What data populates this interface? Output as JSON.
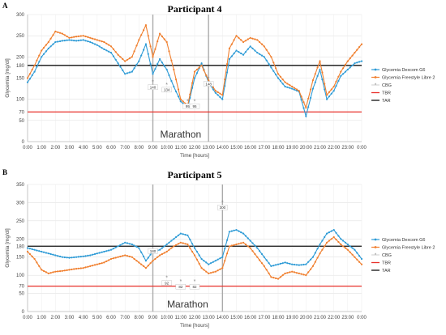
{
  "chart_data": [
    {
      "type": "line",
      "panel": "A",
      "title": "Participant 4",
      "xlabel": "Time [hours]",
      "ylabel": "Glycemia [mg/dl]",
      "ylim": [
        0,
        300
      ],
      "yticks": [
        0,
        50,
        70,
        100,
        150,
        180,
        200,
        250,
        300
      ],
      "xticks": [
        "0:00",
        "1:00",
        "2:00",
        "3:00",
        "4:00",
        "5:00",
        "6:00",
        "7:00",
        "8:00",
        "9:00",
        "10:00",
        "11:00",
        "12:00",
        "13:00",
        "14:00",
        "15:00",
        "16:00",
        "17:00",
        "18:00",
        "19:00",
        "20:00",
        "21:00",
        "22:00",
        "23:00",
        "0:00"
      ],
      "grid": true,
      "legend_position": "right",
      "event": {
        "label": "Marathon",
        "start": 9.0,
        "end": 13.0
      },
      "thresholds": [
        {
          "name": "TBR",
          "value": 70,
          "color": "#e8302a"
        },
        {
          "name": "TAR",
          "value": 180,
          "color": "#111111"
        }
      ],
      "series": [
        {
          "name": "Glycemia Dexcom G6",
          "color": "#2e9bd6",
          "x": [
            0,
            0.5,
            1,
            1.5,
            2,
            2.5,
            3,
            3.5,
            4,
            4.5,
            5,
            5.5,
            6,
            6.5,
            7,
            7.5,
            8,
            8.5,
            9,
            9.5,
            10,
            10.5,
            11,
            11.5,
            12,
            12.5,
            13,
            13.5,
            14,
            14.5,
            15,
            15.5,
            16,
            16.5,
            17,
            17.5,
            18,
            18.5,
            19,
            19.5,
            20,
            20.5,
            21,
            21.5,
            22,
            22.5,
            23,
            23.5,
            24
          ],
          "values": [
            140,
            165,
            200,
            220,
            235,
            238,
            240,
            238,
            240,
            235,
            228,
            218,
            210,
            185,
            160,
            165,
            190,
            230,
            160,
            195,
            170,
            130,
            95,
            80,
            150,
            185,
            140,
            115,
            100,
            195,
            215,
            205,
            225,
            210,
            200,
            175,
            150,
            130,
            125,
            118,
            60,
            125,
            170,
            100,
            120,
            155,
            170,
            185,
            190
          ]
        },
        {
          "name": "Glycemia Freestyle Libre 2",
          "color": "#f07f2e",
          "x": [
            0,
            0.5,
            1,
            1.5,
            2,
            2.5,
            3,
            3.5,
            4,
            4.5,
            5,
            5.5,
            6,
            6.5,
            7,
            7.5,
            8,
            8.5,
            9,
            9.5,
            10,
            10.5,
            11,
            11.5,
            12,
            12.5,
            13,
            13.5,
            14,
            14.5,
            15,
            15.5,
            16,
            16.5,
            17,
            17.5,
            18,
            18.5,
            19,
            19.5,
            20,
            20.5,
            21,
            21.5,
            22,
            22.5,
            23,
            23.5,
            24
          ],
          "values": [
            150,
            180,
            215,
            235,
            260,
            255,
            245,
            248,
            250,
            245,
            240,
            235,
            225,
            205,
            190,
            200,
            240,
            275,
            200,
            255,
            235,
            170,
            100,
            85,
            165,
            180,
            145,
            120,
            110,
            220,
            250,
            235,
            245,
            240,
            225,
            200,
            160,
            140,
            130,
            120,
            80,
            145,
            190,
            110,
            130,
            165,
            190,
            210,
            230
          ]
        },
        {
          "name": "CBG",
          "color": "#999999",
          "x": [
            9.0,
            10.0,
            11.5,
            12.0,
            13.0
          ],
          "values": [
            140,
            134,
            95,
            95,
            148
          ],
          "labels": [
            "140",
            "134",
            "95",
            "95",
            "148"
          ]
        },
        {
          "name": "TBR",
          "color": "#e8302a"
        },
        {
          "name": "TAR",
          "color": "#111111"
        }
      ]
    },
    {
      "type": "line",
      "panel": "B",
      "title": "Participant 5",
      "xlabel": "Time [hours]",
      "ylabel": "Glycemia [mg/dl]",
      "ylim": [
        0,
        350
      ],
      "yticks": [
        0,
        50,
        70,
        100,
        150,
        180,
        200,
        250,
        300,
        350
      ],
      "xticks": [
        "0:00",
        "1:00",
        "2:00",
        "3:00",
        "4:00",
        "5:00",
        "6:00",
        "7:00",
        "8:00",
        "9:00",
        "10:00",
        "11:00",
        "12:00",
        "13:00",
        "14:00",
        "15:00",
        "16:00",
        "17:00",
        "18:00",
        "19:00",
        "20:00",
        "21:00",
        "22:00",
        "23:00",
        "0:00"
      ],
      "grid": true,
      "legend_position": "right",
      "event": {
        "label": "Marathon",
        "start": 9.0,
        "end": 14.0
      },
      "thresholds": [
        {
          "name": "TBR",
          "value": 70,
          "color": "#e8302a"
        },
        {
          "name": "TAR",
          "value": 180,
          "color": "#111111"
        }
      ],
      "series": [
        {
          "name": "Glycemia Dexcom G6",
          "color": "#2e9bd6",
          "x": [
            0,
            0.5,
            1,
            1.5,
            2,
            2.5,
            3,
            3.5,
            4,
            4.5,
            5,
            5.5,
            6,
            6.5,
            7,
            7.5,
            8,
            8.5,
            9,
            9.5,
            10,
            10.5,
            11,
            11.5,
            12,
            12.5,
            13,
            13.5,
            14,
            14.5,
            15,
            15.5,
            16,
            16.5,
            17,
            17.5,
            18,
            18.5,
            19,
            19.5,
            20,
            20.5,
            21,
            21.5,
            22,
            22.5,
            23,
            23.5,
            24
          ],
          "values": [
            175,
            170,
            165,
            160,
            155,
            150,
            148,
            150,
            152,
            155,
            160,
            165,
            170,
            180,
            190,
            185,
            175,
            140,
            165,
            170,
            185,
            200,
            215,
            210,
            175,
            145,
            130,
            140,
            150,
            220,
            225,
            215,
            195,
            175,
            150,
            125,
            130,
            135,
            130,
            128,
            130,
            150,
            185,
            215,
            225,
            200,
            185,
            170,
            145
          ]
        },
        {
          "name": "Glycemia Freestyle Libre 2",
          "color": "#f07f2e",
          "x": [
            0,
            0.5,
            1,
            1.5,
            2,
            2.5,
            3,
            3.5,
            4,
            4.5,
            5,
            5.5,
            6,
            6.5,
            7,
            7.5,
            8,
            8.5,
            9,
            9.5,
            10,
            10.5,
            11,
            11.5,
            12,
            12.5,
            13,
            13.5,
            14,
            14.5,
            15,
            15.5,
            16,
            16.5,
            17,
            17.5,
            18,
            18.5,
            19,
            19.5,
            20,
            20.5,
            21,
            21.5,
            22,
            22.5,
            23,
            23.5,
            24
          ],
          "values": [
            165,
            145,
            115,
            105,
            110,
            112,
            115,
            118,
            120,
            125,
            130,
            135,
            145,
            150,
            155,
            150,
            135,
            120,
            140,
            155,
            165,
            180,
            190,
            185,
            155,
            120,
            105,
            110,
            120,
            180,
            185,
            190,
            175,
            150,
            125,
            95,
            90,
            105,
            110,
            105,
            100,
            125,
            160,
            190,
            205,
            185,
            170,
            150,
            130
          ]
        },
        {
          "name": "CBG",
          "color": "#999999",
          "x": [
            9.0,
            10.0,
            11.0,
            12.0,
            14.0
          ],
          "values": [
            180,
            92,
            82,
            82,
            300
          ],
          "labels": [
            "180",
            "92",
            "82",
            "82",
            "300"
          ]
        },
        {
          "name": "TBR",
          "color": "#e8302a"
        },
        {
          "name": "TAR",
          "color": "#111111"
        }
      ]
    }
  ]
}
